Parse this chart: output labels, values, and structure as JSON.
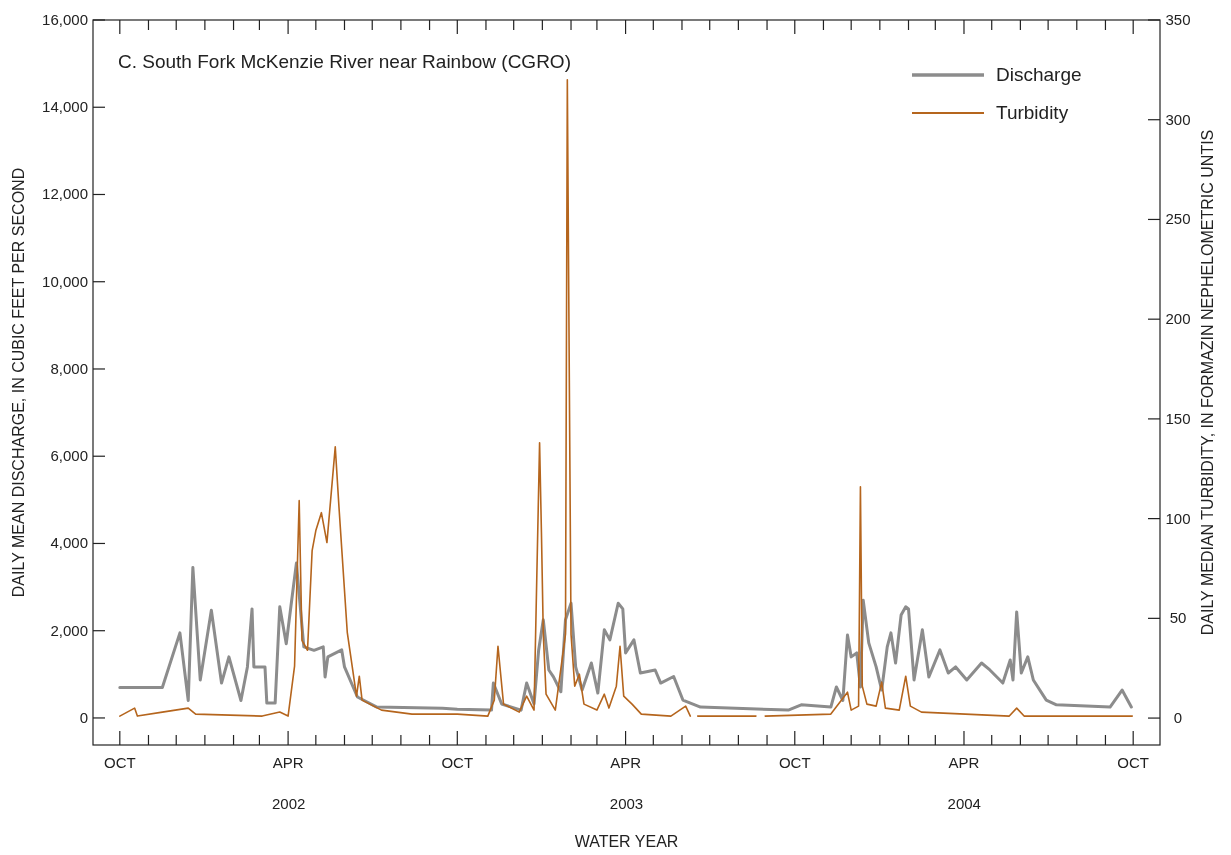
{
  "chart_data": {
    "type": "line",
    "title": "C. South Fork McKenzie River near Rainbow (CGRO)",
    "xlabel": "WATER YEAR",
    "ylabel": "DAILY MEAN DISCHARGE, IN CUBIC FEET PER SECOND",
    "y2label": "DAILY MEDIAN TURBIDITY, IN FORMAZIN NEPHELOMETRIC UNTIS",
    "xlim": [
      "2001-09-02",
      "2004-10-30"
    ],
    "xticks": [
      {
        "value": "2001-10-01",
        "label": "OCT"
      },
      {
        "value": "2001-11-01",
        "label": null
      },
      {
        "value": "2001-12-01",
        "label": null
      },
      {
        "value": "2002-01-01",
        "label": null
      },
      {
        "value": "2002-02-01",
        "label": null
      },
      {
        "value": "2002-03-01",
        "label": null
      },
      {
        "value": "2002-04-01",
        "label": "APR"
      },
      {
        "value": "2002-05-01",
        "label": null
      },
      {
        "value": "2002-06-01",
        "label": null
      },
      {
        "value": "2002-07-01",
        "label": null
      },
      {
        "value": "2002-08-01",
        "label": null
      },
      {
        "value": "2002-09-01",
        "label": null
      },
      {
        "value": "2002-10-01",
        "label": "OCT"
      },
      {
        "value": "2002-11-01",
        "label": null
      },
      {
        "value": "2002-12-01",
        "label": null
      },
      {
        "value": "2003-01-01",
        "label": null
      },
      {
        "value": "2003-02-01",
        "label": null
      },
      {
        "value": "2003-03-01",
        "label": null
      },
      {
        "value": "2003-04-01",
        "label": "APR"
      },
      {
        "value": "2003-05-01",
        "label": null
      },
      {
        "value": "2003-06-01",
        "label": null
      },
      {
        "value": "2003-07-01",
        "label": null
      },
      {
        "value": "2003-08-01",
        "label": null
      },
      {
        "value": "2003-09-01",
        "label": null
      },
      {
        "value": "2003-10-01",
        "label": "OCT"
      },
      {
        "value": "2003-11-01",
        "label": null
      },
      {
        "value": "2003-12-01",
        "label": null
      },
      {
        "value": "2004-01-01",
        "label": null
      },
      {
        "value": "2004-02-01",
        "label": null
      },
      {
        "value": "2004-03-01",
        "label": null
      },
      {
        "value": "2004-04-01",
        "label": "APR"
      },
      {
        "value": "2004-05-01",
        "label": null
      },
      {
        "value": "2004-06-01",
        "label": null
      },
      {
        "value": "2004-07-01",
        "label": null
      },
      {
        "value": "2004-08-01",
        "label": null
      },
      {
        "value": "2004-09-01",
        "label": null
      },
      {
        "value": "2004-10-01",
        "label": "OCT"
      }
    ],
    "ylim": [
      -620,
      16000
    ],
    "yticks": [
      {
        "value": 0,
        "label": "0"
      },
      {
        "value": 2000,
        "label": "2,000"
      },
      {
        "value": 4000,
        "label": "4,000"
      },
      {
        "value": 6000,
        "label": "6,000"
      },
      {
        "value": 8000,
        "label": "8,000"
      },
      {
        "value": 10000,
        "label": "10,000"
      },
      {
        "value": 12000,
        "label": "12,000"
      },
      {
        "value": 14000,
        "label": "14,000"
      },
      {
        "value": 16000,
        "label": "16,000"
      }
    ],
    "y2lim": [
      -13.5,
      350
    ],
    "y2ticks": [
      0,
      50,
      100,
      150,
      200,
      250,
      300,
      350
    ],
    "annotations": [
      "2002",
      "2003",
      "2004"
    ],
    "legend": "top right",
    "grid": false,
    "series": [
      {
        "name": "Discharge",
        "color": "#8c8c8c",
        "x": [
          "2001-10-01",
          "2001-11-16",
          "2001-12-05",
          "2001-12-14",
          "2001-12-19",
          "2001-12-27",
          "2002-01-08",
          "2002-01-19",
          "2002-01-27",
          "2002-02-09",
          "2002-02-16",
          "2002-02-21",
          "2002-02-23",
          "2002-03-07",
          "2002-03-09",
          "2002-03-18",
          "2002-03-23",
          "2002-03-30",
          "2002-04-04",
          "2002-04-10",
          "2002-04-18",
          "2002-04-29",
          "2002-05-09",
          "2002-05-11",
          "2002-05-14",
          "2002-05-29",
          "2002-06-01",
          "2002-06-15",
          "2002-07-06",
          "2002-09-15",
          "2002-10-01",
          "2002-11-07",
          "2002-11-09",
          "2002-11-18",
          "2002-12-09",
          "2002-12-15",
          "2002-12-23",
          "2002-12-28",
          "2003-01-02",
          "2003-01-08",
          "2003-01-13",
          "2003-01-21",
          "2003-01-26",
          "2003-02-01",
          "2003-02-06",
          "2003-02-13",
          "2003-02-23",
          "2003-03-02",
          "2003-03-09",
          "2003-03-15",
          "2003-03-24",
          "2003-03-29",
          "2003-04-01",
          "2003-04-10",
          "2003-04-17",
          "2003-05-03",
          "2003-05-09",
          "2003-05-23",
          "2003-06-02",
          "2003-06-21",
          "2003-09-24",
          "2003-10-08",
          "2003-11-09",
          "2003-11-15",
          "2003-11-22",
          "2003-11-27",
          "2003-12-01",
          "2003-12-07",
          "2003-12-11",
          "2003-12-14",
          "2003-12-20",
          "2003-12-28",
          "2004-01-03",
          "2004-01-09",
          "2004-01-13",
          "2004-01-18",
          "2004-01-24",
          "2004-01-29",
          "2004-02-01",
          "2004-02-07",
          "2004-02-16",
          "2004-02-23",
          "2004-03-06",
          "2004-03-15",
          "2004-03-23",
          "2004-04-04",
          "2004-04-20",
          "2004-04-29",
          "2004-05-13",
          "2004-05-21",
          "2004-05-24",
          "2004-05-28",
          "2004-06-02",
          "2004-06-09",
          "2004-06-15",
          "2004-06-29",
          "2004-07-10",
          "2004-09-06",
          "2004-09-19",
          "2004-09-29"
        ],
        "values": [
          700,
          700,
          1950,
          400,
          3450,
          870,
          2470,
          800,
          1400,
          400,
          1170,
          2500,
          1170,
          1170,
          340,
          340,
          2550,
          1700,
          2550,
          3550,
          1630,
          1550,
          1630,
          940,
          1400,
          1560,
          1170,
          480,
          250,
          220,
          200,
          180,
          800,
          320,
          180,
          800,
          320,
          1560,
          2250,
          1100,
          940,
          600,
          2250,
          2630,
          1170,
          640,
          1260,
          570,
          2020,
          1790,
          2630,
          2500,
          1490,
          1790,
          1030,
          1100,
          800,
          950,
          410,
          250,
          180,
          300,
          250,
          710,
          400,
          1900,
          1400,
          1490,
          710,
          2700,
          1720,
          1170,
          640,
          1630,
          1950,
          1260,
          2360,
          2550,
          2500,
          870,
          2020,
          940,
          1560,
          1030,
          1170,
          870,
          1260,
          1100,
          800,
          1330,
          870,
          2430,
          1030,
          1400,
          870,
          410,
          300,
          250,
          640,
          250
        ]
      },
      {
        "name": "Turbidity",
        "color": "#b5651d",
        "axis": "y2",
        "x": [
          "2001-10-01",
          "2001-10-17",
          "2001-10-20",
          "2001-11-16",
          "2001-12-14",
          "2001-12-22",
          "2002-03-04",
          "2002-03-23",
          "2002-04-01",
          "2002-04-08",
          "2002-04-13",
          "2002-04-16",
          "2002-04-22",
          "2002-04-27",
          "2002-05-01",
          "2002-05-07",
          "2002-05-13",
          "2002-05-22",
          "2002-05-26",
          "2002-06-04",
          "2002-06-14",
          "2002-06-17",
          "2002-06-20",
          "2002-07-11",
          "2002-08-13",
          "2002-10-01",
          "2002-11-03",
          "2002-11-10",
          "2002-11-14",
          "2002-11-20",
          "2002-12-07",
          "2002-12-15",
          "2002-12-23",
          "2002-12-29",
          "2002-12-31",
          "2003-01-02",
          "2003-01-05",
          "2003-01-15",
          "2003-01-26",
          "2003-01-28",
          "2003-02-01",
          "2003-02-05",
          "2003-02-10",
          "2003-02-15",
          "2003-03-01",
          "2003-03-09",
          "2003-03-14",
          "2003-03-22",
          "2003-03-26",
          "2003-03-30",
          "2003-04-08",
          "2003-04-18",
          "2003-05-20",
          "2003-06-05",
          "2003-06-10",
          "2003-06-14",
          "2003-06-18",
          "2003-08-20",
          "2003-08-25",
          "2003-08-30",
          "2003-11-09",
          "2003-11-27",
          "2003-12-01",
          "2003-12-09",
          "2003-12-11",
          "2003-12-13",
          "2003-12-18",
          "2003-12-28",
          "2004-01-03",
          "2004-01-07",
          "2004-01-22",
          "2004-01-29",
          "2004-02-03",
          "2004-02-15",
          "2004-05-20",
          "2004-05-28",
          "2004-06-05",
          "2004-09-30"
        ],
        "values": [
          1,
          5,
          1,
          3,
          5,
          2,
          1,
          3,
          1,
          26,
          109,
          39,
          34,
          84,
          94,
          103,
          88,
          136,
          106,
          43,
          11,
          21,
          9,
          4,
          2,
          2,
          1,
          9,
          36,
          7,
          3,
          11,
          4,
          138,
          93,
          42,
          12,
          4,
          42,
          320,
          42,
          16,
          22,
          7,
          4,
          12,
          5,
          16,
          36,
          11,
          7,
          2,
          1,
          6,
          1,
          null,
          1,
          1,
          null,
          1,
          2,
          13,
          4,
          6,
          116,
          16,
          7,
          6,
          18,
          5,
          4,
          21,
          6,
          3,
          1,
          5,
          1,
          1
        ]
      }
    ]
  }
}
